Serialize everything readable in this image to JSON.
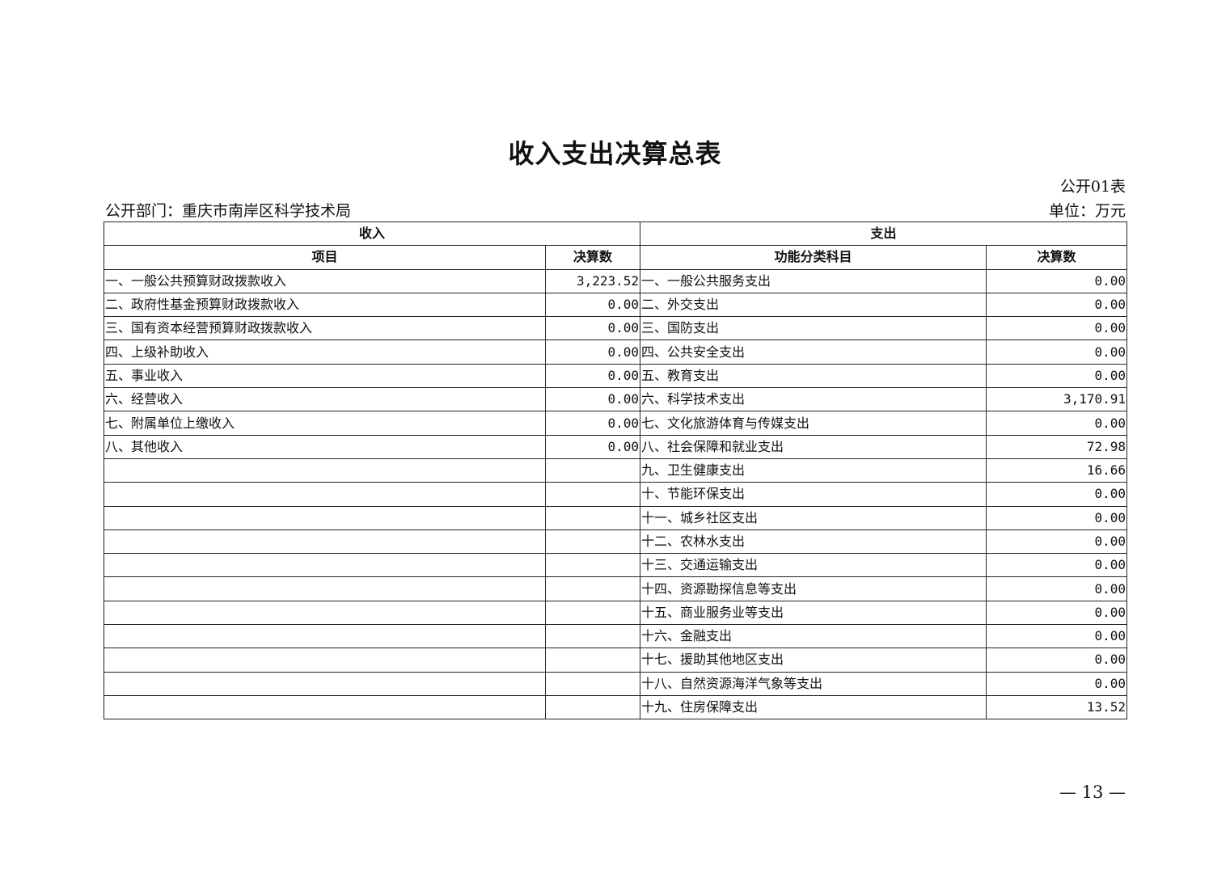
{
  "title": "收入支出决算总表",
  "table_no": "公开01表",
  "department": "公开部门：重庆市南岸区科学技术局",
  "unit": "单位：万元",
  "headers": {
    "income": "收入",
    "expense": "支出",
    "item": "项目",
    "income_amount": "决算数",
    "function_category": "功能分类科目",
    "expense_amount": "决算数"
  },
  "rows": [
    {
      "income_item": "一、一般公共预算财政拨款收入",
      "income_amount": "3,223.52",
      "expense_item": "一、一般公共服务支出",
      "expense_amount": "0.00"
    },
    {
      "income_item": "二、政府性基金预算财政拨款收入",
      "income_amount": "0.00",
      "expense_item": "二、外交支出",
      "expense_amount": "0.00"
    },
    {
      "income_item": "三、国有资本经营预算财政拨款收入",
      "income_amount": "0.00",
      "expense_item": "三、国防支出",
      "expense_amount": "0.00"
    },
    {
      "income_item": "四、上级补助收入",
      "income_amount": "0.00",
      "expense_item": "四、公共安全支出",
      "expense_amount": "0.00"
    },
    {
      "income_item": "五、事业收入",
      "income_amount": "0.00",
      "expense_item": "五、教育支出",
      "expense_amount": "0.00"
    },
    {
      "income_item": "六、经营收入",
      "income_amount": "0.00",
      "expense_item": "六、科学技术支出",
      "expense_amount": "3,170.91"
    },
    {
      "income_item": "七、附属单位上缴收入",
      "income_amount": "0.00",
      "expense_item": "七、文化旅游体育与传媒支出",
      "expense_amount": "0.00"
    },
    {
      "income_item": "八、其他收入",
      "income_amount": "0.00",
      "expense_item": "八、社会保障和就业支出",
      "expense_amount": "72.98"
    },
    {
      "income_item": "",
      "income_amount": "",
      "expense_item": "九、卫生健康支出",
      "expense_amount": "16.66"
    },
    {
      "income_item": "",
      "income_amount": "",
      "expense_item": "十、节能环保支出",
      "expense_amount": "0.00"
    },
    {
      "income_item": "",
      "income_amount": "",
      "expense_item": "十一、城乡社区支出",
      "expense_amount": "0.00"
    },
    {
      "income_item": "",
      "income_amount": "",
      "expense_item": "十二、农林水支出",
      "expense_amount": "0.00"
    },
    {
      "income_item": "",
      "income_amount": "",
      "expense_item": "十三、交通运输支出",
      "expense_amount": "0.00"
    },
    {
      "income_item": "",
      "income_amount": "",
      "expense_item": "十四、资源勘探信息等支出",
      "expense_amount": "0.00"
    },
    {
      "income_item": "",
      "income_amount": "",
      "expense_item": "十五、商业服务业等支出",
      "expense_amount": "0.00"
    },
    {
      "income_item": "",
      "income_amount": "",
      "expense_item": "十六、金融支出",
      "expense_amount": "0.00"
    },
    {
      "income_item": "",
      "income_amount": "",
      "expense_item": "十七、援助其他地区支出",
      "expense_amount": "0.00"
    },
    {
      "income_item": "",
      "income_amount": "",
      "expense_item": "十八、自然资源海洋气象等支出",
      "expense_amount": "0.00"
    },
    {
      "income_item": "",
      "income_amount": "",
      "expense_item": "十九、住房保障支出",
      "expense_amount": "13.52"
    }
  ],
  "page_number": "— 13 —"
}
